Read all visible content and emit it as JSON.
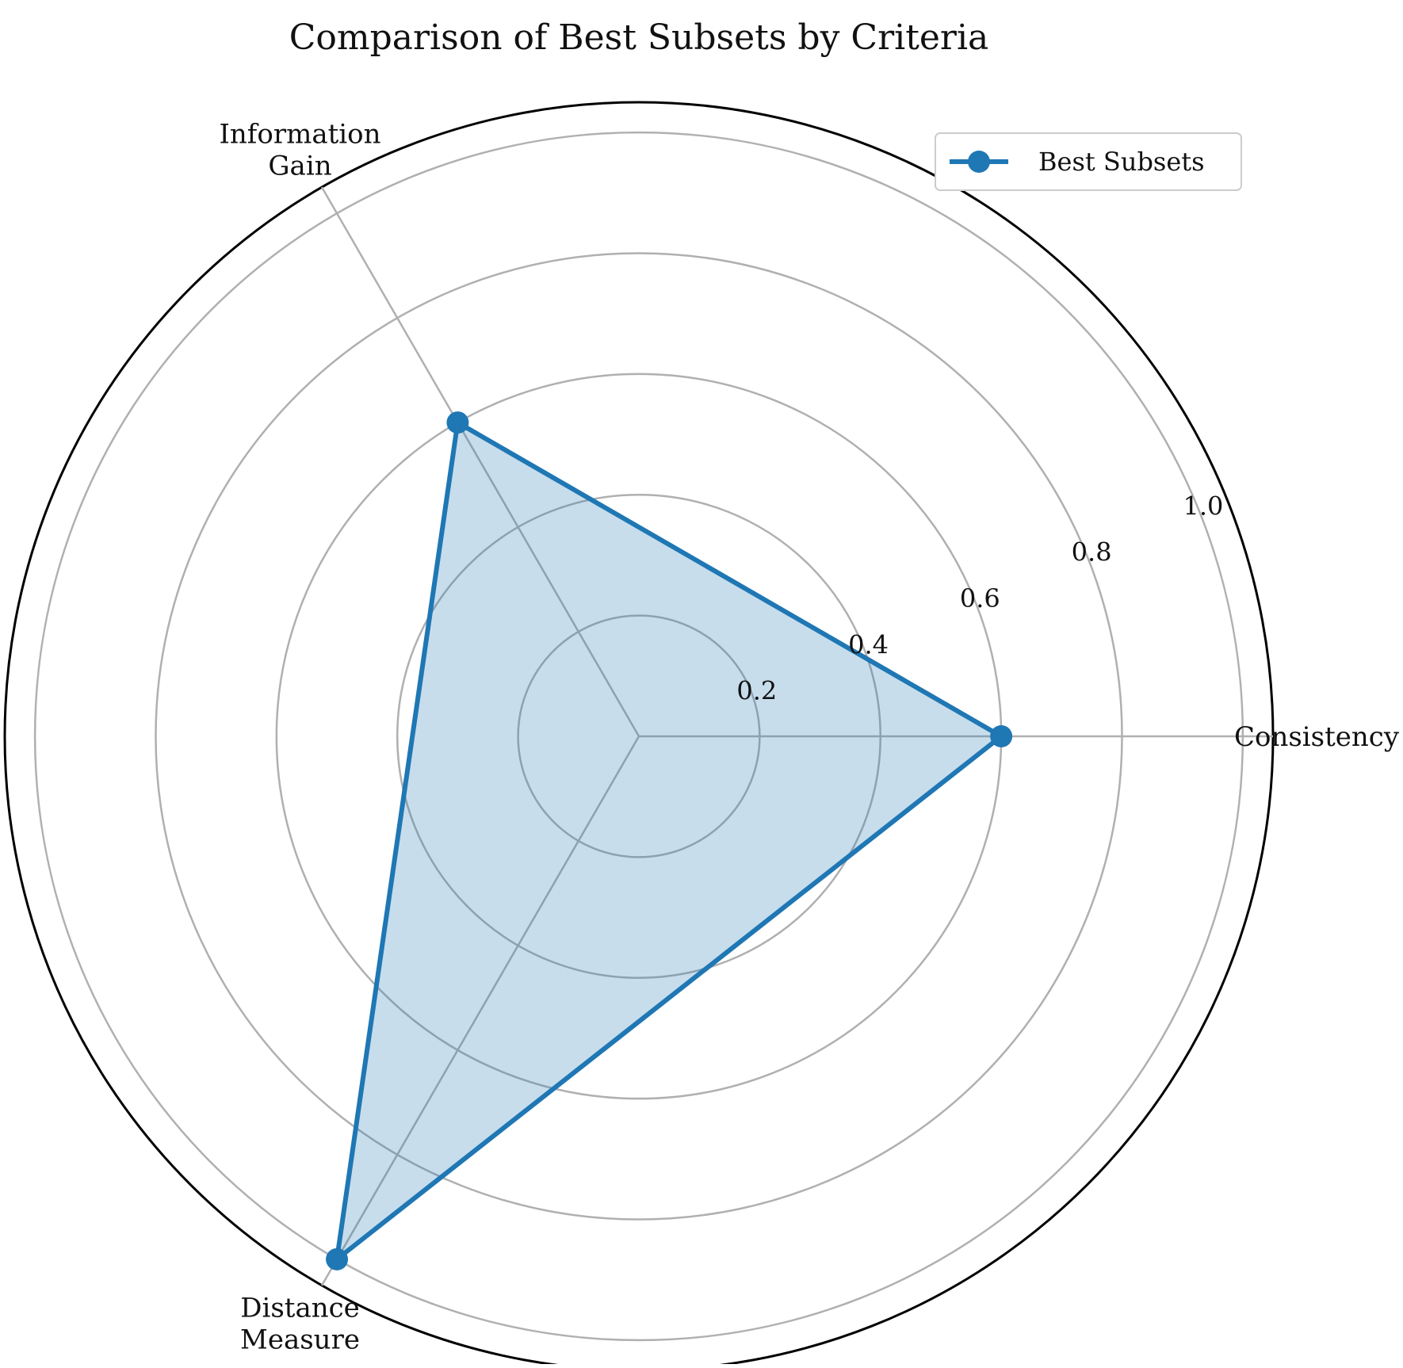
{
  "chart_data": {
    "type": "radar",
    "title": "Comparison of Best Subsets by Criteria",
    "axes": [
      "Consistency",
      "Information\nGain",
      "Distance\nMeasure"
    ],
    "series": [
      {
        "name": "Best Subsets",
        "values": [
          0.6,
          0.6,
          1.0
        ],
        "color": "#1f77b4",
        "fill_color": "#1f77b4",
        "fill_opacity": 0.25
      }
    ],
    "r_range": [
      0,
      1.05
    ],
    "r_ticks": [
      0.2,
      0.4,
      0.6,
      0.8,
      1.0
    ],
    "r_tick_labels": [
      "0.2",
      "0.4",
      "0.6",
      "0.8",
      "1.0"
    ],
    "grid": true,
    "grid_color": "#b0b0b0",
    "legend_position": "top-right"
  }
}
